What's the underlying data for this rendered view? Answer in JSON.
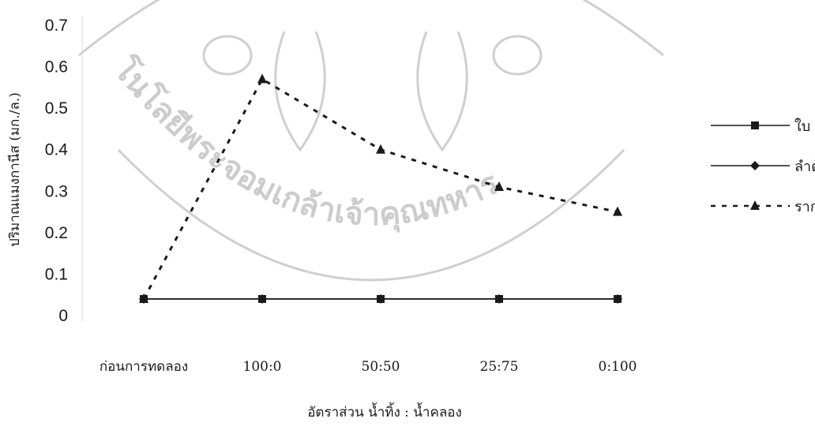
{
  "chart_data": {
    "type": "line",
    "categories": [
      "ก่อนการทดลอง",
      "100:0",
      "50:50",
      "25:75",
      "0:100"
    ],
    "series": [
      {
        "name": "ใบ",
        "values": [
          0.04,
          0.04,
          0.04,
          0.04,
          0.04
        ],
        "line_style": "solid",
        "marker": "square",
        "color": "#1a1a1a"
      },
      {
        "name": "ลำต้น",
        "values": [
          0.04,
          0.04,
          0.04,
          0.04,
          0.04
        ],
        "line_style": "solid",
        "marker": "diamond",
        "color": "#1a1a1a"
      },
      {
        "name": "ราก",
        "values": [
          0.04,
          0.57,
          0.4,
          0.31,
          0.25
        ],
        "line_style": "dashed",
        "marker": "triangle",
        "color": "#1a1a1a"
      }
    ],
    "yticks": [
      "0",
      "0.1",
      "0.2",
      "0.3",
      "0.4",
      "0.5",
      "0.6",
      "0.7"
    ],
    "ylim": [
      0,
      0.7
    ],
    "xlabel": "อัตราส่วน น้ำทิ้ง : น้ำคลอง",
    "ylabel": "ปริมาณแมงกานีส (มก./ล.)",
    "grid": false,
    "legend_position": "right"
  },
  "watermark": {
    "text": "โนโลยีพระจอมเกล้าเจ้าคุณทหาร",
    "color": "#cccccc"
  }
}
